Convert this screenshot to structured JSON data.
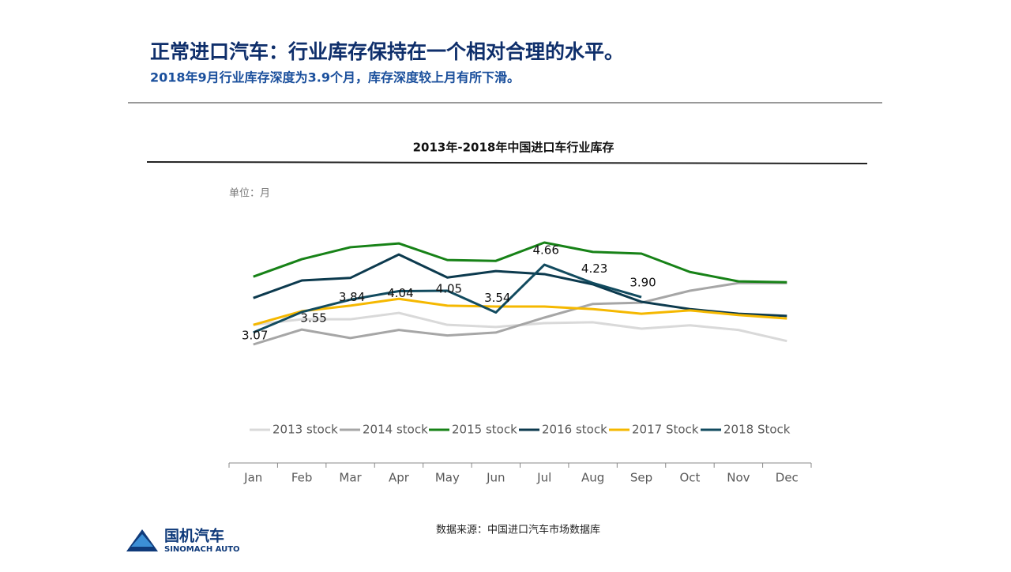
{
  "header": {
    "title": "正常进口汽车：行业库存保持在一个相对合理的水平。",
    "subtitle": "2018年9月行业库存深度为3.9个月，库存深度较上月有所下滑。"
  },
  "chart_data": {
    "type": "line",
    "title": "2013年-2018年中国进口车行业库存",
    "unit": "单位：月",
    "categories": [
      "Jan",
      "Feb",
      "Mar",
      "Apr",
      "May",
      "Jun",
      "Jul",
      "Aug",
      "Sep",
      "Oct",
      "Nov",
      "Dec"
    ],
    "series": [
      {
        "name": "2013 stock",
        "color": "#d9d9d9",
        "values": [
          3.25,
          3.38,
          3.38,
          3.53,
          3.25,
          3.2,
          3.29,
          3.31,
          3.16,
          3.24,
          3.13,
          2.87
        ]
      },
      {
        "name": "2014 stock",
        "color": "#a6a6a6",
        "values": [
          2.79,
          3.14,
          2.94,
          3.13,
          3.0,
          3.07,
          3.42,
          3.74,
          3.77,
          4.05,
          4.23,
          4.23
        ]
      },
      {
        "name": "2015 stock",
        "color": "#178217",
        "values": [
          4.38,
          4.79,
          5.07,
          5.16,
          4.77,
          4.75,
          5.18,
          4.96,
          4.92,
          4.49,
          4.27,
          4.25
        ]
      },
      {
        "name": "2016 stock",
        "color": "#0c3a4e",
        "values": [
          3.88,
          4.29,
          4.35,
          4.9,
          4.36,
          4.51,
          4.44,
          4.2,
          3.79,
          3.62,
          3.51,
          3.46
        ]
      },
      {
        "name": "2017 Stock",
        "color": "#f5b800",
        "values": [
          3.25,
          3.57,
          3.7,
          3.86,
          3.7,
          3.68,
          3.68,
          3.62,
          3.51,
          3.59,
          3.48,
          3.4
        ]
      },
      {
        "name": "2018 Stock",
        "color": "#124b5f",
        "values": [
          3.07,
          3.55,
          3.84,
          4.04,
          4.05,
          3.54,
          4.66,
          4.23,
          3.9,
          null,
          null,
          null
        ],
        "value_labels": [
          "3.07",
          "3.55",
          "3.84",
          "4.04",
          "4.05",
          "3.54",
          "4.66",
          "4.23",
          "3.90",
          null,
          null,
          null
        ]
      }
    ]
  },
  "footer": {
    "source": "数据来源：中国进口汽车市场数据库",
    "logo_cn": "国机汽车",
    "logo_en": "SINOMACH AUTO"
  }
}
